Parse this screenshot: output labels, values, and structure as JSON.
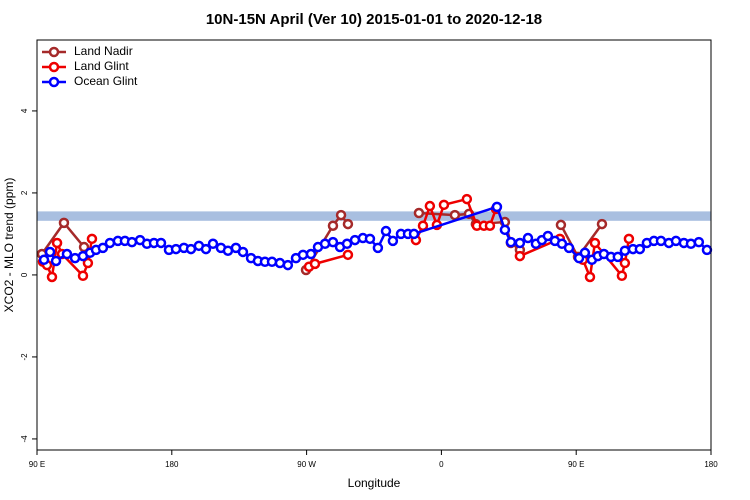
{
  "chart_data": {
    "type": "line",
    "title": "10N-15N April (Ver 10)   2015-01-01 to 2020-12-18",
    "x_label": "Longitude",
    "y_label": "XCO2 - MLO trend (ppm)",
    "xlim": [
      90,
      540
    ],
    "ylim": [
      -4.27,
      5.73
    ],
    "xticks": [
      {
        "value": 90,
        "label": "90 E"
      },
      180,
      {
        "value": 270,
        "label": "90 W"
      },
      {
        "value": 360,
        "label": "0"
      },
      {
        "value": 450,
        "label": "90 E"
      },
      {
        "value": 540,
        "label": "180"
      }
    ],
    "yticks": [
      -4,
      -2,
      0,
      2,
      4
    ],
    "band": {
      "ylim": [
        1.32,
        1.55
      ],
      "color": "#a9bfe0"
    },
    "legend": "top-left",
    "series": [
      {
        "name": "Land Nadir",
        "color": "#a52a2a",
        "x": [
          93.3,
          108,
          121.4,
          null,
          269.6,
          287.6,
          293,
          297.6,
          null,
          345,
          369,
          378.4,
          383,
          402.4,
          406.4,
          412.4,
          null,
          439.8,
          451.2,
          467.2
        ],
        "values": [
          0.51,
          1.27,
          0.68,
          null,
          0.12,
          1.2,
          1.46,
          1.24,
          null,
          1.51,
          1.46,
          1.49,
          1.24,
          1.29,
          0.78,
          0.61,
          null,
          1.22,
          0.44,
          1.24
        ]
      },
      {
        "name": "Land Glint",
        "color": "#ee0000",
        "x": [
          94,
          96.7,
          100,
          103.4,
          106.7,
          120.7,
          124,
          126.7,
          null,
          271.6,
          275.6,
          297.6,
          null,
          343,
          347.7,
          352.3,
          357,
          361.7,
          377,
          383.7,
          388.4,
          392.4,
          396.4,
          null,
          412.4,
          439.1,
          454.5,
          459.2,
          462.5,
          480.5,
          482.5,
          485.2
        ],
        "values": [
          0.32,
          0.24,
          -0.05,
          0.78,
          0.51,
          -0.02,
          0.29,
          0.88,
          null,
          0.2,
          0.27,
          0.49,
          null,
          0.85,
          1.2,
          1.68,
          1.22,
          1.71,
          1.85,
          1.2,
          1.2,
          1.2,
          1.61,
          null,
          0.46,
          0.88,
          0.37,
          -0.05,
          0.78,
          -0.02,
          0.29,
          0.88
        ]
      },
      {
        "name": "Ocean Glint",
        "color": "#0000ff",
        "x": [
          94.7,
          98.7,
          102.7,
          110,
          115.4,
          120.7,
          125.4,
          129.4,
          134,
          138.7,
          144,
          148.7,
          153.4,
          158.8,
          163.4,
          168.1,
          172.8,
          178.1,
          182.8,
          188.1,
          192.8,
          198.1,
          202.8,
          207.5,
          212.8,
          217.5,
          222.8,
          227.5,
          232.9,
          237.5,
          242.2,
          246.9,
          252.2,
          257.5,
          262.9,
          267.6,
          272.9,
          277.6,
          282.3,
          287.6,
          292.3,
          297,
          302.3,
          307.6,
          312.3,
          317.6,
          323,
          327.6,
          333,
          337.7,
          341.7,
          397.1,
          402.4,
          406.4,
          412.4,
          417.8,
          423.1,
          427.1,
          431.1,
          435.8,
          440.5,
          445.2,
          451.9,
          455.8,
          460.5,
          464.5,
          468.5,
          473.2,
          477.8,
          482.5,
          487.9,
          492.5,
          497.2,
          501.9,
          506.6,
          511.9,
          516.6,
          521.9,
          526.6,
          531.9,
          537.3
        ],
        "values": [
          0.37,
          0.56,
          0.34,
          0.51,
          0.41,
          0.46,
          0.54,
          0.61,
          0.66,
          0.78,
          0.83,
          0.83,
          0.8,
          0.85,
          0.76,
          0.78,
          0.78,
          0.61,
          0.63,
          0.66,
          0.63,
          0.71,
          0.63,
          0.76,
          0.66,
          0.59,
          0.66,
          0.56,
          0.41,
          0.34,
          0.32,
          0.32,
          0.29,
          0.24,
          0.41,
          0.49,
          0.51,
          0.68,
          0.76,
          0.8,
          0.68,
          0.76,
          0.85,
          0.9,
          0.88,
          0.66,
          1.07,
          0.83,
          1.0,
          1.0,
          1.0,
          1.66,
          1.1,
          0.8,
          0.78,
          0.9,
          0.76,
          0.85,
          0.95,
          0.83,
          0.76,
          0.66,
          0.41,
          0.54,
          0.37,
          0.46,
          0.51,
          0.44,
          0.44,
          0.59,
          0.63,
          0.63,
          0.78,
          0.83,
          0.83,
          0.78,
          0.83,
          0.78,
          0.76,
          0.8,
          0.61
        ]
      }
    ]
  }
}
